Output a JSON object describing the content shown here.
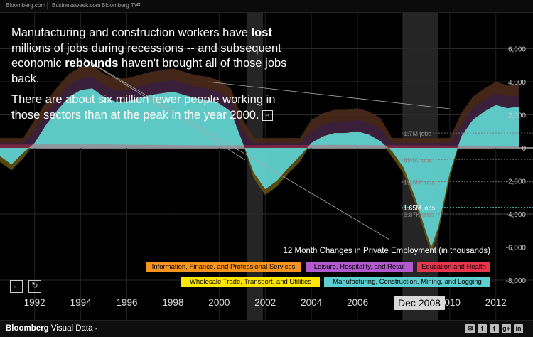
{
  "topbar": {
    "links": [
      "Bloomberg.com",
      "Businessweek.com",
      "Bloomberg TV"
    ]
  },
  "intro": {
    "p1_a": "Manufacturing and construction workers have",
    "p1_bold1": "lost",
    "p1_b": " millions of jobs during recessions -- and subsequent economic ",
    "p1_bold2": "rebounds",
    "p1_c": " haven't brought all of those jobs back.",
    "p2": "There are about six million fewer people working in those sectors than at the peak in the year 2000.",
    "next_icon": "→"
  },
  "legend": {
    "title": "12 Month Changes in Private Employment (in thousands)",
    "items": [
      {
        "label": "Information, Finance, and Professional Services",
        "color": "#f7941d"
      },
      {
        "label": "Leisure, Hospitality, and Retail",
        "color": "#b45ad0"
      },
      {
        "label": "Education and Health",
        "color": "#e8364f"
      },
      {
        "label": "Wholesale Trade, Transport, and Utilities",
        "color": "#ffe600"
      },
      {
        "label": "Manufacturing, Construction, Mining, and Logging",
        "color": "#5ecfd0"
      }
    ]
  },
  "nav": {
    "prev_icon": "←",
    "reset_icon": "↻"
  },
  "date_badge": "Dec 2008",
  "footer": {
    "brand": "Bloomberg",
    "brand_sub": "Visual Data",
    "comment_icon": "▪",
    "social": [
      "✉",
      "f",
      "t",
      "g+",
      "in"
    ]
  },
  "chart_data": {
    "type": "area",
    "x_ticks": [
      "1992",
      "1994",
      "1996",
      "1998",
      "2000",
      "2002",
      "2004",
      "2006",
      "2008",
      "2010",
      "2012"
    ],
    "y_ticks": [
      "6,000",
      "4,000",
      "2,000",
      "0",
      "-2,000",
      "-4,000",
      "-6,000",
      "-8,000"
    ],
    "ylim": [
      -8000,
      7000
    ],
    "xlim": [
      1990.5,
      2013.3
    ],
    "recessions": [
      [
        2001.2,
        2001.9
      ],
      [
        2007.95,
        2009.5
      ]
    ],
    "series": [
      {
        "name": "Manufacturing, Construction, Mining, and Logging",
        "color": "#5ecfd0",
        "x": [
          1990.5,
          1991.0,
          1991.5,
          1992.0,
          1992.5,
          1993.0,
          1993.5,
          1994.0,
          1994.5,
          1995.0,
          1995.5,
          1996.0,
          1996.5,
          1997.0,
          1997.5,
          1998.0,
          1998.5,
          1999.0,
          1999.5,
          2000.0,
          2000.5,
          2001.0,
          2001.5,
          2002.0,
          2002.5,
          2003.0,
          2003.5,
          2004.0,
          2004.5,
          2005.0,
          2005.5,
          2006.0,
          2006.5,
          2007.0,
          2007.5,
          2008.0,
          2008.5,
          2009.0,
          2009.2,
          2009.5,
          2010.0,
          2010.5,
          2011.0,
          2011.5,
          2012.0,
          2012.5,
          2013.0
        ],
        "values": [
          -500,
          -1000,
          -300,
          300,
          1400,
          2300,
          3100,
          3500,
          3600,
          3100,
          2800,
          2800,
          3000,
          3200,
          3300,
          3400,
          3200,
          3000,
          2900,
          2700,
          2200,
          400,
          -1500,
          -2500,
          -2000,
          -1200,
          -500,
          300,
          700,
          900,
          900,
          1000,
          800,
          400,
          -200,
          -1200,
          -3000,
          -5200,
          -6000,
          -4800,
          -1500,
          700,
          1700,
          2200,
          2600,
          2400,
          2500
        ]
      },
      {
        "name": "Wholesale Trade, Transport, and Utilities",
        "color": "#ffe600",
        "x": [
          1992.5,
          1993.5,
          1994.5,
          1995.5,
          1996.5,
          1997.5,
          1998.5,
          1999.5,
          2000.5,
          2001.5,
          2002.5,
          2003.5,
          2004.5,
          2005.5,
          2006.5,
          2007.5,
          2008.5,
          2009.2,
          2010.5,
          2011.5,
          2012.5
        ],
        "values": [
          0,
          0,
          0,
          0,
          0,
          0,
          0,
          0,
          0,
          -400,
          -600,
          -300,
          0,
          0,
          0,
          0,
          -500,
          -1600,
          0,
          0,
          0
        ]
      },
      {
        "name": "Education and Health",
        "color": "#e8364f",
        "x": [
          1990.5,
          1995.0,
          2000.0,
          2005.0,
          2009.0,
          2013.0
        ],
        "values": [
          200,
          200,
          150,
          180,
          150,
          120
        ]
      }
    ],
    "annotations": [
      {
        "text": "-1.65M jobs",
        "value": -3600
      },
      {
        "text": "-3.87K jobs",
        "value": -4000
      },
      {
        "text": "-1.16M jobs",
        "value": -2050
      },
      {
        "text": "-994K jobs",
        "value": -700
      },
      {
        "text": "-1.7M jobs",
        "value": 900
      }
    ]
  }
}
